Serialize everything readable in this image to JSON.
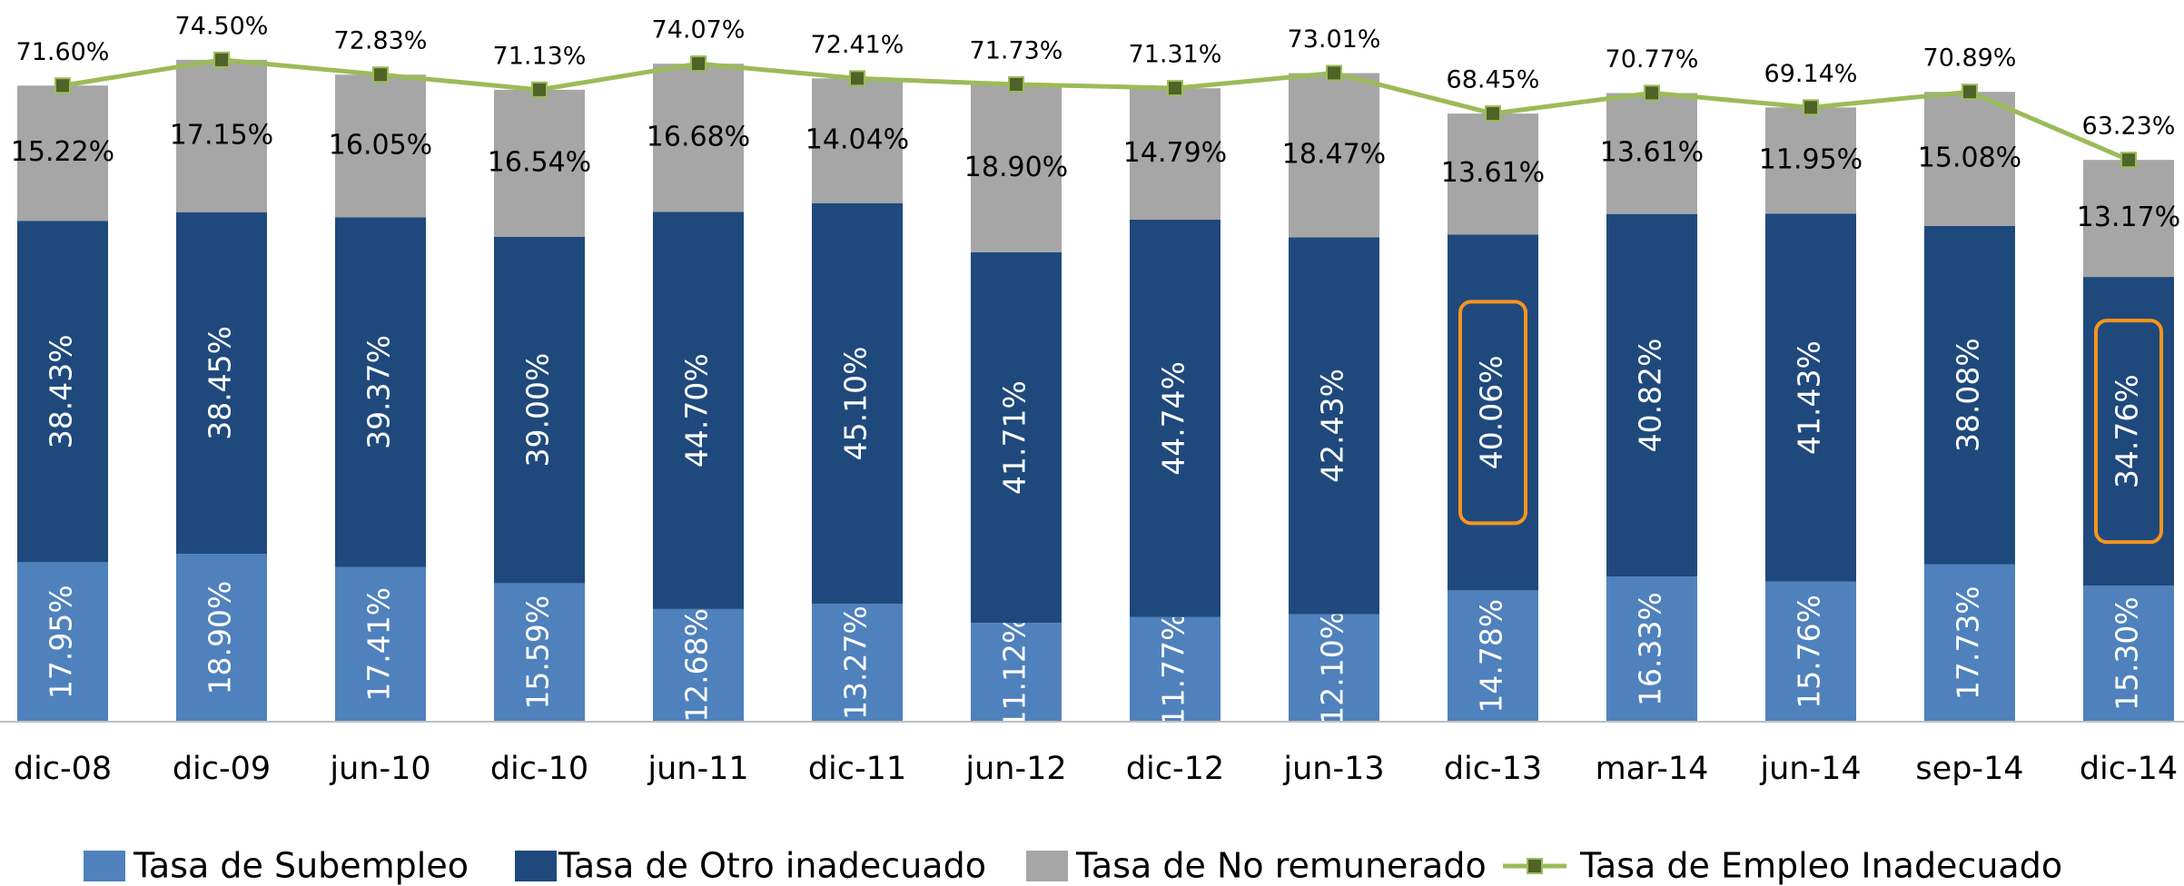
{
  "chart_data": {
    "type": "bar",
    "stacked": true,
    "categories": [
      "dic-08",
      "dic-09",
      "jun-10",
      "dic-10",
      "jun-11",
      "dic-11",
      "jun-12",
      "dic-12",
      "jun-13",
      "dic-13",
      "mar-14",
      "jun-14",
      "sep-14",
      "dic-14"
    ],
    "series": [
      {
        "name": "Tasa de Subempleo",
        "color": "#4f81bd",
        "values": [
          17.95,
          18.9,
          17.41,
          15.59,
          12.68,
          13.27,
          11.12,
          11.77,
          12.1,
          14.78,
          16.33,
          15.76,
          17.73,
          15.3
        ],
        "value_labels": [
          "17.95%",
          "18.90%",
          "17.41%",
          "15.59%",
          "12.68%",
          "13.27%",
          "11.12%",
          "11.77%",
          "12.10%",
          "14.78%",
          "16.33%",
          "15.76%",
          "17.73%",
          "15.30%"
        ]
      },
      {
        "name": "Tasa de Otro inadecuado",
        "color": "#1f497d",
        "values": [
          38.43,
          38.45,
          39.37,
          39.0,
          44.7,
          45.1,
          41.71,
          44.74,
          42.43,
          40.06,
          40.82,
          41.43,
          38.08,
          34.76
        ],
        "value_labels": [
          "38.43%",
          "38.45%",
          "39.37%",
          "39.00%",
          "44.70%",
          "45.10%",
          "41.71%",
          "44.74%",
          "42.43%",
          "40.06%",
          "40.82%",
          "41.43%",
          "38.08%",
          "34.76%"
        ]
      },
      {
        "name": "Tasa de No remunerado",
        "color": "#a6a6a6",
        "values": [
          15.22,
          17.15,
          16.05,
          16.54,
          16.68,
          14.04,
          18.9,
          14.79,
          18.47,
          13.61,
          13.61,
          11.95,
          15.08,
          13.17
        ],
        "value_labels": [
          "15.22%",
          "17.15%",
          "16.05%",
          "16.54%",
          "16.68%",
          "14.04%",
          "18.90%",
          "14.79%",
          "18.47%",
          "13.61%",
          "13.61%",
          "11.95%",
          "15.08%",
          "13.17%"
        ]
      },
      {
        "name": "Tasa de Empleo Inadecuado",
        "type": "line",
        "color": "#9bbb59",
        "values": [
          71.6,
          74.5,
          72.83,
          71.13,
          74.07,
          72.41,
          71.73,
          71.31,
          73.01,
          68.45,
          70.77,
          69.14,
          70.89,
          63.23
        ],
        "value_labels": [
          "71.60%",
          "74.50%",
          "72.83%",
          "71.13%",
          "74.07%",
          "72.41%",
          "71.73%",
          "71.31%",
          "73.01%",
          "68.45%",
          "70.77%",
          "69.14%",
          "70.89%",
          "63.23%"
        ]
      }
    ]
  }
}
